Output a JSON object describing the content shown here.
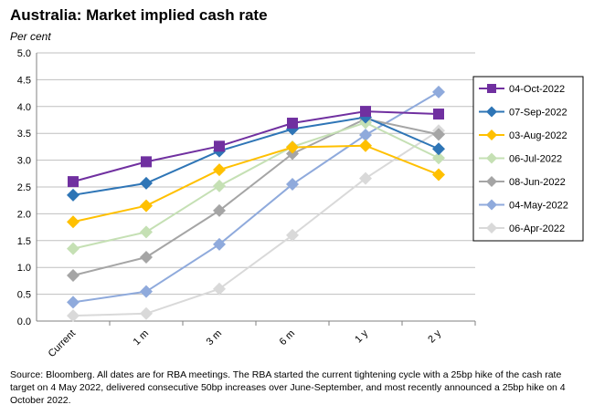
{
  "chart_data": {
    "type": "line",
    "title": "Australia: Market implied cash rate",
    "ylabel": "Per cent",
    "xlabel": "",
    "categories": [
      "Current",
      "1 m",
      "3 m",
      "6 m",
      "1 y",
      "2 y"
    ],
    "ylim": [
      0,
      5
    ],
    "yticks": [
      "0.0",
      "0.5",
      "1.0",
      "1.5",
      "2.0",
      "2.5",
      "3.0",
      "3.5",
      "4.0",
      "4.5",
      "5.0"
    ],
    "grid": true,
    "legend_position": "right",
    "series": [
      {
        "name": "04-Oct-2022",
        "color": "#7030A0",
        "marker": "square",
        "values": [
          2.6,
          2.97,
          3.26,
          3.69,
          3.91,
          3.86
        ]
      },
      {
        "name": "07-Sep-2022",
        "color": "#2E75B6",
        "marker": "diamond",
        "values": [
          2.35,
          2.57,
          3.17,
          3.58,
          3.8,
          3.21
        ]
      },
      {
        "name": "03-Aug-2022",
        "color": "#FFC000",
        "marker": "diamond",
        "values": [
          1.85,
          2.15,
          2.82,
          3.24,
          3.27,
          2.73
        ]
      },
      {
        "name": "06-Jul-2022",
        "color": "#C5E0B4",
        "marker": "diamond",
        "values": [
          1.35,
          1.66,
          2.52,
          3.25,
          3.7,
          3.04
        ]
      },
      {
        "name": "08-Jun-2022",
        "color": "#A5A5A5",
        "marker": "diamond",
        "values": [
          0.85,
          1.19,
          2.06,
          3.12,
          3.77,
          3.48
        ]
      },
      {
        "name": "04-May-2022",
        "color": "#8FAADC",
        "marker": "diamond",
        "values": [
          0.35,
          0.55,
          1.43,
          2.55,
          3.47,
          4.27
        ]
      },
      {
        "name": "06-Apr-2022",
        "color": "#D9D9D9",
        "marker": "diamond",
        "values": [
          0.1,
          0.14,
          0.6,
          1.6,
          2.66,
          3.55
        ]
      }
    ]
  },
  "source_note": "Source: Bloomberg. All dates are for RBA meetings. The RBA started the current tightening cycle with a 25bp hike of the cash rate target on 4 May 2022, delivered consecutive 50bp increases over June-September, and most recently announced a 25bp hike  on 4 October 2022."
}
